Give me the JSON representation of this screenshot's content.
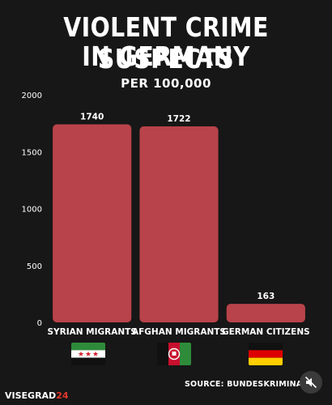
{
  "title_line1": "VIOLENT CRIME SUSPECTS",
  "title_line2": "IN GERMANY",
  "subtitle": "PER 100,000",
  "colors": {
    "bar": "#b9434a",
    "background": "#171717",
    "text": "#ffffff",
    "brand_accent": "#e0352b"
  },
  "chart_data": {
    "type": "bar",
    "categories": [
      "SYRIAN MIGRANTS",
      "AFGHAN MIGRANTS",
      "GERMAN CITIZENS"
    ],
    "values": [
      1740,
      1722,
      163
    ],
    "data_labels": [
      "1740",
      "1722",
      "163"
    ],
    "ylim": [
      0,
      2000
    ],
    "yticks": [
      0,
      500,
      1000,
      1500,
      2000
    ],
    "ytick_labels": [
      "0",
      "500",
      "1000",
      "1500",
      "2000"
    ],
    "grid": false,
    "legend": "none"
  },
  "flags": [
    "syria-flag-icon",
    "afghanistan-flag-icon",
    "germany-flag-icon"
  ],
  "footer": {
    "brand_main": "VISEGRAD",
    "brand_accent": "24",
    "source": "SOURCE:  BUNDESKRIMINALAMT (BKA), FREIB"
  },
  "mute_icon": "speaker-muted-icon"
}
